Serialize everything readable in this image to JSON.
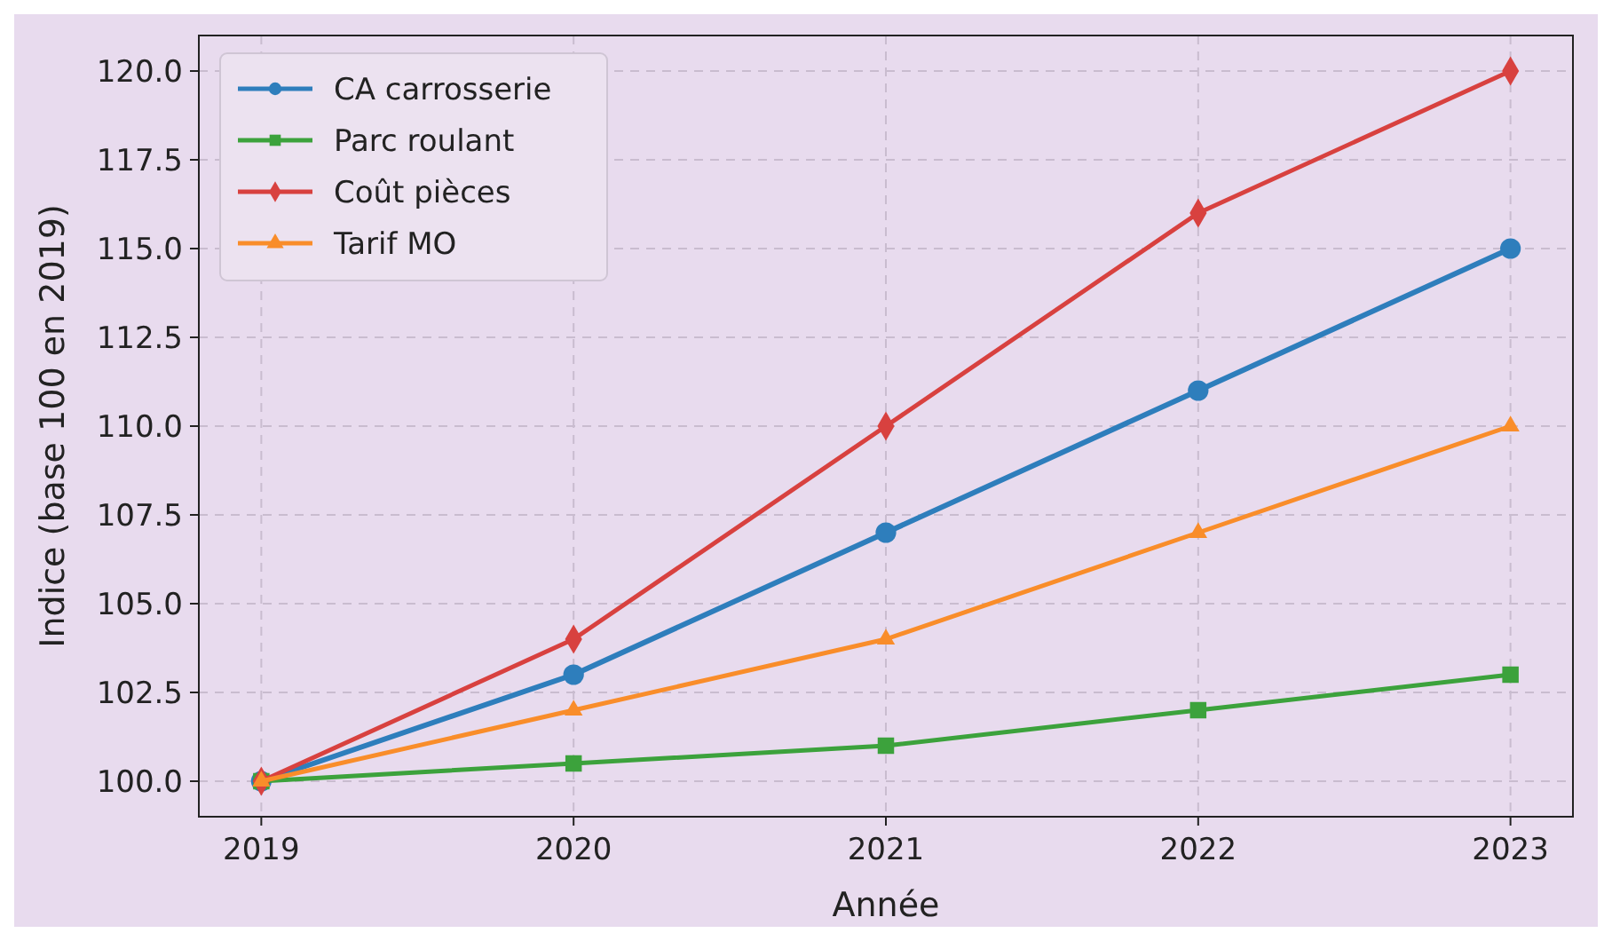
{
  "chart_data": {
    "type": "line",
    "xlabel": "Année",
    "ylabel": "Indice (base 100 en 2019)",
    "x": [
      2019,
      2020,
      2021,
      2022,
      2023
    ],
    "series": [
      {
        "name": "CA carrosserie",
        "color": "#2e7ebc",
        "values": [
          100,
          103,
          107,
          111,
          115
        ],
        "marker": "circle"
      },
      {
        "name": "Parc roulant",
        "color": "#3ca23c",
        "values": [
          100,
          100.5,
          101,
          102,
          103
        ],
        "marker": "square"
      },
      {
        "name": "Coût pièces",
        "color": "#d8413f",
        "values": [
          100,
          104,
          110,
          116,
          120
        ],
        "marker": "diamond"
      },
      {
        "name": "Tarif MO",
        "color": "#f98d2a",
        "values": [
          100,
          102,
          104,
          107,
          110
        ],
        "marker": "triangle"
      }
    ],
    "xlim": [
      2018.8,
      2023.2
    ],
    "xticks": [
      2019,
      2020,
      2021,
      2022,
      2023
    ],
    "ylim": [
      99,
      121
    ],
    "yticks": [
      {
        "value": 100,
        "label": "100.0"
      },
      {
        "value": 102.5,
        "label": "102.5"
      },
      {
        "value": 105,
        "label": "105.0"
      },
      {
        "value": 107.5,
        "label": "107.5"
      },
      {
        "value": 110,
        "label": "110.0"
      },
      {
        "value": 112.5,
        "label": "112.5"
      },
      {
        "value": 115,
        "label": "115.0"
      },
      {
        "value": 117.5,
        "label": "117.5"
      },
      {
        "value": 120,
        "label": "120.0"
      }
    ],
    "grid": true,
    "legend": "top left",
    "line_style": "solid"
  }
}
